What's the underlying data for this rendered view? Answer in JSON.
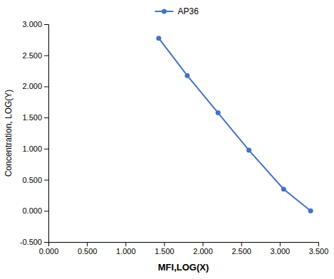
{
  "chart_data": {
    "type": "line",
    "xlabel": "MFI,LOG(X)",
    "ylabel": "Concentration, LOG(Y)",
    "x": [
      1.43,
      1.8,
      2.2,
      2.6,
      3.05,
      3.4
    ],
    "series": [
      {
        "name": "AP36",
        "color": "#4472C4",
        "marker": "circle",
        "values": [
          2.775,
          2.175,
          1.575,
          0.975,
          0.35,
          0.0
        ]
      }
    ],
    "xlim": [
      0.0,
      3.5
    ],
    "ylim": [
      -0.5,
      3.0
    ],
    "xticks": [
      {
        "value": 0.0,
        "label": "0.000"
      },
      {
        "value": 0.5,
        "label": "0.500"
      },
      {
        "value": 1.0,
        "label": "1.000"
      },
      {
        "value": 1.5,
        "label": "1.500"
      },
      {
        "value": 2.0,
        "label": "2.000"
      },
      {
        "value": 2.5,
        "label": "2.500"
      },
      {
        "value": 3.0,
        "label": "3.000"
      },
      {
        "value": 3.5,
        "label": "3.500"
      }
    ],
    "yticks": [
      {
        "value": -0.5,
        "label": "-0.500"
      },
      {
        "value": 0.0,
        "label": "0.000"
      },
      {
        "value": 0.5,
        "label": "0.500"
      },
      {
        "value": 1.0,
        "label": "1.000"
      },
      {
        "value": 1.5,
        "label": "1.500"
      },
      {
        "value": 2.0,
        "label": "2.000"
      },
      {
        "value": 2.5,
        "label": "2.500"
      },
      {
        "value": 3.0,
        "label": "3.000"
      }
    ],
    "grid": false,
    "legend": "top"
  }
}
